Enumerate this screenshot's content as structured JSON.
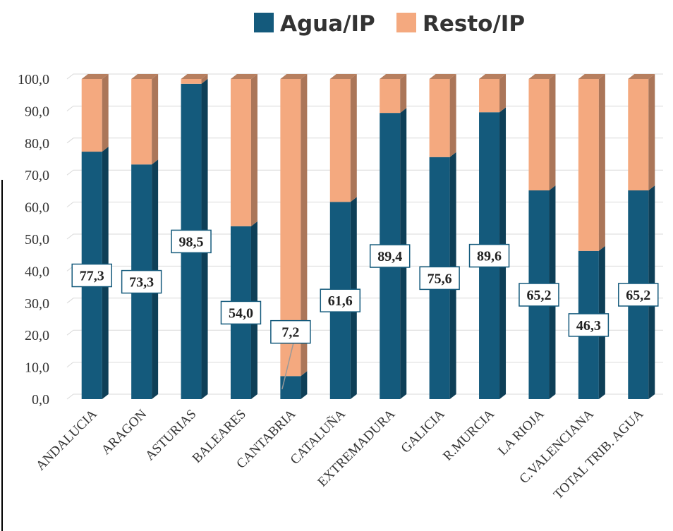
{
  "chart_data": {
    "type": "stacked_bar",
    "categories": [
      "ANDALUCIA",
      "ARAGON",
      "ASTURIAS",
      "BALEARES",
      "CANTABRIA",
      "CATALUÑA",
      "EXTREMADURA",
      "GALICIA",
      "R.MURCIA",
      "LA RIOJA",
      "C.VALENCIANA",
      "TOTAL TRIB. AGUA"
    ],
    "series": [
      {
        "name": "Agua/IP",
        "color": "#145a7c",
        "values": [
          77.3,
          73.3,
          98.5,
          54.0,
          7.2,
          61.6,
          89.4,
          75.6,
          89.6,
          65.2,
          46.3,
          65.2
        ],
        "value_labels": [
          "77,3",
          "73,3",
          "98,5",
          "54,0",
          "7,2",
          "61,6",
          "89,4",
          "75,6",
          "89,6",
          "65,2",
          "46,3",
          "65,2"
        ]
      },
      {
        "name": "Resto/IP",
        "color": "#f4a97f",
        "values": [
          22.7,
          26.7,
          1.5,
          46.0,
          92.8,
          38.4,
          10.6,
          24.4,
          10.4,
          34.8,
          53.7,
          34.8
        ]
      }
    ],
    "ylim": [
      0,
      100
    ],
    "yticks": [
      {
        "value": 0,
        "label": "0,0"
      },
      {
        "value": 10,
        "label": "10,0"
      },
      {
        "value": 20,
        "label": "20,0"
      },
      {
        "value": 30,
        "label": "30,0"
      },
      {
        "value": 40,
        "label": "40,0"
      },
      {
        "value": 50,
        "label": "50,0"
      },
      {
        "value": 60,
        "label": "60,0"
      },
      {
        "value": 70,
        "label": "70,0"
      },
      {
        "value": 80,
        "label": "80,0"
      },
      {
        "value": 90,
        "label": "90,0"
      },
      {
        "value": 100,
        "label": "100,0"
      }
    ],
    "grid": true,
    "legend": "top"
  }
}
